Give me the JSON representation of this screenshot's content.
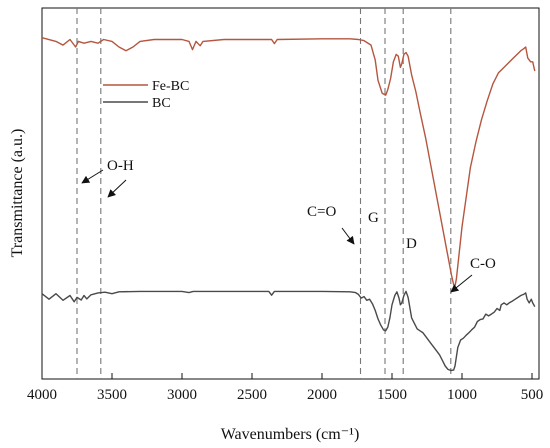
{
  "chart_data": {
    "type": "line",
    "xlabel": "Wavenumbers (cm⁻¹)",
    "ylabel": "Transmittance (a.u.)",
    "xlim": [
      4000,
      450
    ],
    "x_direction": "reversed",
    "x_ticks": [
      4000,
      3500,
      3000,
      2500,
      2000,
      1500,
      1000,
      500
    ],
    "y_ticks": "none",
    "grid": false,
    "legend_position": "top-left",
    "series": [
      {
        "name": "Fe-BC",
        "color": "#b5563f",
        "points": [
          [
            4000,
            92
          ],
          [
            3900,
            91
          ],
          [
            3850,
            90
          ],
          [
            3800,
            91.5
          ],
          [
            3760,
            89.5
          ],
          [
            3740,
            91
          ],
          [
            3700,
            90.5
          ],
          [
            3650,
            91
          ],
          [
            3600,
            90.5
          ],
          [
            3560,
            91.5
          ],
          [
            3500,
            91
          ],
          [
            3450,
            89.5
          ],
          [
            3400,
            88.5
          ],
          [
            3350,
            89.5
          ],
          [
            3300,
            91
          ],
          [
            3200,
            91.5
          ],
          [
            3000,
            91.5
          ],
          [
            2950,
            91
          ],
          [
            2925,
            88.8
          ],
          [
            2900,
            91
          ],
          [
            2870,
            89.8
          ],
          [
            2850,
            91
          ],
          [
            2700,
            91.5
          ],
          [
            2500,
            91.5
          ],
          [
            2360,
            91.5
          ],
          [
            2340,
            90.4
          ],
          [
            2320,
            91.5
          ],
          [
            2000,
            91.7
          ],
          [
            1800,
            91.7
          ],
          [
            1740,
            91.5
          ],
          [
            1700,
            91.2
          ],
          [
            1650,
            90
          ],
          [
            1620,
            86
          ],
          [
            1600,
            80.5
          ],
          [
            1570,
            77
          ],
          [
            1545,
            76.5
          ],
          [
            1530,
            78
          ],
          [
            1510,
            81
          ],
          [
            1490,
            85.5
          ],
          [
            1470,
            87.5
          ],
          [
            1455,
            87
          ],
          [
            1440,
            84
          ],
          [
            1430,
            85
          ],
          [
            1415,
            87.5
          ],
          [
            1400,
            88
          ],
          [
            1385,
            87
          ],
          [
            1360,
            82
          ],
          [
            1330,
            77.5
          ],
          [
            1300,
            72
          ],
          [
            1260,
            65
          ],
          [
            1220,
            57
          ],
          [
            1180,
            49
          ],
          [
            1140,
            41
          ],
          [
            1110,
            35
          ],
          [
            1090,
            31
          ],
          [
            1075,
            28
          ],
          [
            1060,
            25.5
          ],
          [
            1050,
            25
          ],
          [
            1040,
            27
          ],
          [
            1020,
            34
          ],
          [
            1000,
            41
          ],
          [
            970,
            49
          ],
          [
            940,
            57
          ],
          [
            900,
            64
          ],
          [
            860,
            70
          ],
          [
            820,
            75
          ],
          [
            780,
            79.5
          ],
          [
            740,
            82.5
          ],
          [
            700,
            84
          ],
          [
            660,
            85.5
          ],
          [
            620,
            87
          ],
          [
            580,
            88.5
          ],
          [
            560,
            89
          ],
          [
            545,
            89.5
          ],
          [
            530,
            86.5
          ],
          [
            510,
            85.5
          ],
          [
            495,
            85.5
          ],
          [
            480,
            83
          ]
        ]
      },
      {
        "name": "BC",
        "color": "#4a4a4a",
        "points": [
          [
            4000,
            23
          ],
          [
            3950,
            21.5
          ],
          [
            3900,
            23
          ],
          [
            3850,
            21.2
          ],
          [
            3800,
            22.5
          ],
          [
            3770,
            20.8
          ],
          [
            3750,
            22
          ],
          [
            3720,
            21.3
          ],
          [
            3700,
            22.5
          ],
          [
            3680,
            21.6
          ],
          [
            3650,
            22.7
          ],
          [
            3600,
            23.2
          ],
          [
            3550,
            23.4
          ],
          [
            3500,
            23
          ],
          [
            3450,
            23.5
          ],
          [
            3300,
            23.6
          ],
          [
            3000,
            23.6
          ],
          [
            2950,
            23.3
          ],
          [
            2920,
            23.6
          ],
          [
            2700,
            23.6
          ],
          [
            2380,
            23.6
          ],
          [
            2360,
            22.6
          ],
          [
            2340,
            23.6
          ],
          [
            2000,
            23.6
          ],
          [
            1800,
            23.5
          ],
          [
            1760,
            23.3
          ],
          [
            1740,
            22.8
          ],
          [
            1720,
            21.8
          ],
          [
            1700,
            22.2
          ],
          [
            1680,
            21.2
          ],
          [
            1660,
            21.5
          ],
          [
            1640,
            20.3
          ],
          [
            1620,
            18.5
          ],
          [
            1600,
            16.2
          ],
          [
            1580,
            14.5
          ],
          [
            1560,
            13.2
          ],
          [
            1545,
            13
          ],
          [
            1530,
            14
          ],
          [
            1515,
            16.5
          ],
          [
            1500,
            20
          ],
          [
            1480,
            22.5
          ],
          [
            1465,
            23.5
          ],
          [
            1450,
            21.8
          ],
          [
            1440,
            20
          ],
          [
            1430,
            20.5
          ],
          [
            1415,
            22.5
          ],
          [
            1400,
            23.6
          ],
          [
            1385,
            22
          ],
          [
            1360,
            16.5
          ],
          [
            1340,
            15
          ],
          [
            1320,
            13.5
          ],
          [
            1300,
            13
          ],
          [
            1280,
            12.5
          ],
          [
            1250,
            11
          ],
          [
            1220,
            9.5
          ],
          [
            1190,
            8
          ],
          [
            1160,
            6.5
          ],
          [
            1140,
            5
          ],
          [
            1120,
            3.5
          ],
          [
            1100,
            2.6
          ],
          [
            1080,
            2.3
          ],
          [
            1060,
            2.4
          ],
          [
            1050,
            3.5
          ],
          [
            1040,
            6
          ],
          [
            1030,
            8.5
          ],
          [
            1010,
            10.5
          ],
          [
            990,
            11
          ],
          [
            970,
            11.8
          ],
          [
            950,
            12.5
          ],
          [
            930,
            13.3
          ],
          [
            910,
            14
          ],
          [
            890,
            15.5
          ],
          [
            870,
            16
          ],
          [
            850,
            16.2
          ],
          [
            830,
            17.5
          ],
          [
            810,
            17
          ],
          [
            790,
            17.5
          ],
          [
            770,
            18
          ],
          [
            750,
            19
          ],
          [
            730,
            18.5
          ],
          [
            720,
            20
          ],
          [
            700,
            20.5
          ],
          [
            680,
            20
          ],
          [
            660,
            20.6
          ],
          [
            640,
            21
          ],
          [
            620,
            21.5
          ],
          [
            600,
            22
          ],
          [
            580,
            22.5
          ],
          [
            560,
            22.8
          ],
          [
            545,
            23.2
          ],
          [
            535,
            21.5
          ],
          [
            520,
            20.5
          ],
          [
            505,
            21.5
          ],
          [
            495,
            20.5
          ],
          [
            480,
            19.5
          ]
        ]
      }
    ],
    "reference_lines": [
      3750,
      3580,
      1725,
      1550,
      1420,
      1080
    ],
    "annotations": [
      {
        "text": "O-H"
      },
      {
        "text": "C=O"
      },
      {
        "text": "G"
      },
      {
        "text": "D"
      },
      {
        "text": "C-O"
      }
    ]
  }
}
